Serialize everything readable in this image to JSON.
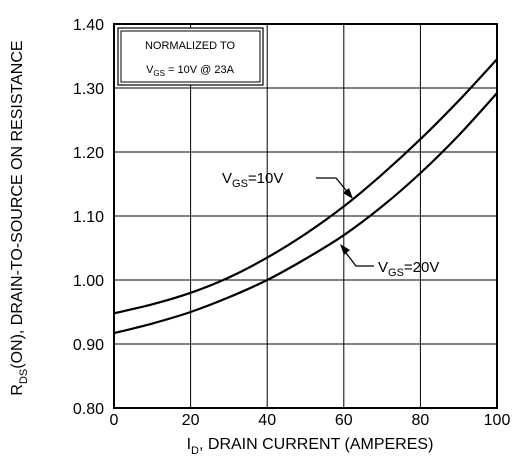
{
  "chart_data": {
    "type": "line",
    "x_label": {
      "main": "I",
      "sub": "D",
      "rest": ", DRAIN CURRENT (AMPERES)"
    },
    "y_label": {
      "main": "R",
      "sub": "DS",
      "rest": "(ON), DRAIN-TO-SOURCE ON RESISTANCE"
    },
    "xlim": [
      0,
      100
    ],
    "ylim": [
      0.8,
      1.4
    ],
    "x_ticks": [
      "0",
      "20",
      "40",
      "60",
      "80",
      "100"
    ],
    "y_ticks": [
      "0.80",
      "0.90",
      "1.00",
      "1.10",
      "1.20",
      "1.30",
      "1.40"
    ],
    "grid": true,
    "legend_box": {
      "line1": "NORMALIZED TO",
      "line2": {
        "main": "V",
        "sub": "GS",
        "rest": " = 10V  @  23A"
      },
      "placement": "top-left"
    },
    "series": [
      {
        "label": {
          "main": "V",
          "sub": "GS",
          "rest": "=10V"
        },
        "x": [
          0,
          10,
          20,
          30,
          40,
          50,
          60,
          70,
          80,
          90,
          100
        ],
        "y": [
          0.948,
          0.962,
          0.98,
          1.004,
          1.035,
          1.072,
          1.115,
          1.165,
          1.22,
          1.28,
          1.345
        ]
      },
      {
        "label": {
          "main": "V",
          "sub": "GS",
          "rest": "=20V"
        },
        "x": [
          0,
          10,
          20,
          30,
          40,
          50,
          60,
          70,
          80,
          90,
          100
        ],
        "y": [
          0.917,
          0.932,
          0.95,
          0.973,
          1.0,
          1.033,
          1.07,
          1.115,
          1.167,
          1.226,
          1.292
        ]
      }
    ]
  }
}
